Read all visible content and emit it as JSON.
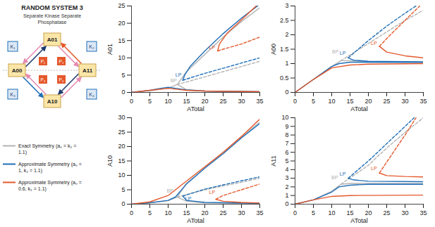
{
  "diagram": {
    "title": "RANDOM SYSTEM 3",
    "subtitle": "Separate Kinase Separate Phosphatase",
    "nodes": {
      "top": "A01",
      "left": "A00",
      "right": "A11",
      "bottom": "A10"
    },
    "kinases": [
      "K₁",
      "K₂",
      "K₃",
      "K₄"
    ],
    "phosphatases": [
      "P₁",
      "P₂",
      "P₃",
      "P₄"
    ]
  },
  "chart_data": [
    {
      "type": "line",
      "ylabel": "A01",
      "xlabel": "ATotal",
      "xlim": [
        0,
        35
      ],
      "xticks": [
        0,
        5,
        10,
        15,
        20,
        25,
        30,
        35
      ],
      "ylim": [
        0,
        25
      ],
      "yticks": [
        0,
        5,
        10,
        15,
        20,
        25
      ],
      "series": [
        {
          "name": "Exact Symmetry (a₀ = k₂ = 1.1)",
          "color": "#b3b3b3",
          "segments": [
            {
              "line_style": "solid",
              "x": [
                0,
                5,
                10,
                12.5,
                15,
                20,
                25,
                30,
                35
              ],
              "values": [
                0,
                0.5,
                1.2,
                2.3,
                6,
                11,
                16,
                20.5,
                24.5
              ]
            },
            {
              "line_style": "solid",
              "x": [
                12.5,
                15,
                20,
                25,
                35
              ],
              "values": [
                2.3,
                0.8,
                0.4,
                0.3,
                0.2
              ]
            },
            {
              "line_style": "dashed",
              "x": [
                12.5,
                20,
                25,
                30,
                35
              ],
              "values": [
                2.3,
                4.5,
                6,
                7.5,
                9
              ]
            }
          ]
        },
        {
          "name": "Approximate Symmetry (a₀ = 1, k₂ = 1.1)",
          "color": "#1f6fb8",
          "segments": [
            {
              "line_style": "solid",
              "x": [
                0,
                5,
                8,
                10,
                12,
                15,
                20,
                25,
                35
              ],
              "values": [
                0,
                0.6,
                1.2,
                1.5,
                1.2,
                0.7,
                0.4,
                0.3,
                0.2
              ]
            },
            {
              "line_style": "solid",
              "x": [
                14,
                14.5,
                16,
                20,
                25,
                30,
                35
              ],
              "values": [
                3.5,
                5,
                7.5,
                12,
                17,
                21.5,
                25.5
              ]
            },
            {
              "line_style": "dashed",
              "x": [
                14,
                16,
                20,
                25,
                30,
                35
              ],
              "values": [
                3.5,
                4.2,
                5.5,
                7,
                8.5,
                10
              ]
            }
          ]
        },
        {
          "name": "Approximate Symmetry (a₀ = 0.6, k₂ = 1.1)",
          "color": "#e5582b",
          "segments": [
            {
              "line_style": "solid",
              "x": [
                0,
                5,
                10,
                15,
                20,
                35
              ],
              "values": [
                0,
                0.6,
                1.2,
                0.6,
                0.4,
                0.2
              ]
            },
            {
              "line_style": "solid",
              "x": [
                23.5,
                24,
                26,
                30,
                34
              ],
              "values": [
                12,
                14,
                17,
                21,
                25
              ]
            },
            {
              "line_style": "dashed",
              "x": [
                23.5,
                25,
                30,
                35
              ],
              "values": [
                12,
                12.5,
                14,
                16
              ]
            }
          ]
        }
      ],
      "annotations": [
        {
          "text": "BP",
          "x": 11.5,
          "y": 3.4,
          "color": "#b3b3b3"
        },
        {
          "text": "LP",
          "x": 12.8,
          "y": 5,
          "color": "#1f6fb8"
        },
        {
          "text": "LP",
          "x": 22,
          "y": 13,
          "color": "#e5582b"
        }
      ]
    },
    {
      "type": "line",
      "ylabel": "A00",
      "xlabel": "ATotal",
      "xlim": [
        0,
        35
      ],
      "xticks": [
        0,
        5,
        10,
        15,
        20,
        25,
        30,
        35
      ],
      "ylim": [
        0,
        3
      ],
      "yticks": [
        0,
        0.5,
        1,
        1.5,
        2,
        2.5,
        3
      ],
      "series": [
        {
          "name": "Exact Symmetry (a₀ = k₂ = 1.1)",
          "color": "#b3b3b3",
          "segments": [
            {
              "line_style": "solid",
              "x": [
                0,
                5,
                10,
                12.5,
                15,
                20,
                35
              ],
              "values": [
                0,
                0.45,
                0.9,
                1.1,
                1.1,
                1.07,
                1.05
              ]
            },
            {
              "line_style": "dashed",
              "x": [
                12.5,
                20,
                25,
                30,
                35
              ],
              "values": [
                1.1,
                1.7,
                2.1,
                2.5,
                2.85
              ]
            }
          ]
        },
        {
          "name": "Approximate Symmetry (a₀ = 1, k₂ = 1.1)",
          "color": "#1f6fb8",
          "segments": [
            {
              "line_style": "solid",
              "x": [
                0,
                5,
                10,
                12,
                15,
                20,
                35
              ],
              "values": [
                0,
                0.45,
                0.9,
                1.0,
                1.05,
                1.05,
                1.04
              ]
            },
            {
              "line_style": "solid",
              "x": [
                14.5,
                16,
                20,
                35
              ],
              "values": [
                1.2,
                1.12,
                1.08,
                1.06
              ]
            },
            {
              "line_style": "dashed",
              "x": [
                14.5,
                20,
                25,
                30,
                33
              ],
              "values": [
                1.2,
                1.8,
                2.3,
                2.75,
                3
              ]
            }
          ]
        },
        {
          "name": "Approximate Symmetry (a₀ = 0.6, k₂ = 1.1)",
          "color": "#e5582b",
          "segments": [
            {
              "line_style": "solid",
              "x": [
                0,
                5,
                10,
                15,
                20,
                35
              ],
              "values": [
                0,
                0.45,
                0.85,
                0.95,
                0.98,
                1.0
              ]
            },
            {
              "line_style": "solid",
              "x": [
                23,
                25,
                30,
                35
              ],
              "values": [
                1.6,
                1.4,
                1.27,
                1.2
              ]
            },
            {
              "line_style": "dashed",
              "x": [
                23,
                26,
                30,
                34
              ],
              "values": [
                1.6,
                2,
                2.5,
                3
              ]
            }
          ]
        }
      ],
      "annotations": [
        {
          "text": "BP",
          "x": 11,
          "y": 1.4,
          "color": "#b3b3b3"
        },
        {
          "text": "LP",
          "x": 13,
          "y": 1.35,
          "color": "#1f6fb8"
        },
        {
          "text": "LP",
          "x": 21.5,
          "y": 1.7,
          "color": "#e5582b"
        }
      ]
    },
    {
      "type": "line",
      "ylabel": "A10",
      "xlabel": "ATotal",
      "xlim": [
        0,
        35
      ],
      "xticks": [
        0,
        5,
        10,
        15,
        20,
        25,
        30,
        35
      ],
      "ylim": [
        0,
        30
      ],
      "yticks": [
        0,
        5,
        10,
        15,
        20,
        25,
        30
      ],
      "series": [
        {
          "name": "Exact Symmetry (a₀ = k₂ = 1.1)",
          "color": "#b3b3b3",
          "segments": [
            {
              "line_style": "solid",
              "x": [
                0,
                5,
                10,
                12.5,
                15,
                20,
                25,
                30,
                35
              ],
              "values": [
                0,
                0.5,
                1.2,
                2.5,
                7.2,
                12.5,
                18,
                23.3,
                28.5
              ]
            },
            {
              "line_style": "solid",
              "x": [
                12.5,
                15,
                20,
                35
              ],
              "values": [
                2.5,
                1,
                0.5,
                0.3
              ]
            },
            {
              "line_style": "dashed",
              "x": [
                12.5,
                20,
                25,
                30,
                35
              ],
              "values": [
                2.5,
                5,
                6.3,
                7.6,
                9
              ]
            }
          ]
        },
        {
          "name": "Approximate Symmetry (a₀ = 1, k₂ = 1.1)",
          "color": "#1f6fb8",
          "segments": [
            {
              "line_style": "solid",
              "x": [
                0,
                5,
                10,
                12,
                15,
                20,
                25,
                30,
                35
              ],
              "values": [
                0,
                0.5,
                1.3,
                2.5,
                7,
                12.5,
                17.5,
                23,
                28
              ]
            },
            {
              "line_style": "solid",
              "x": [
                14,
                15,
                20,
                35
              ],
              "values": [
                2.8,
                1.3,
                0.6,
                0.3
              ]
            },
            {
              "line_style": "dashed",
              "x": [
                14,
                20,
                25,
                30,
                35
              ],
              "values": [
                2.8,
                5.2,
                6.7,
                8.1,
                9.5
              ]
            }
          ]
        },
        {
          "name": "Approximate Symmetry (a₀ = 0.6, k₂ = 1.1)",
          "color": "#e5582b",
          "segments": [
            {
              "line_style": "solid",
              "x": [
                0,
                5,
                10,
                15,
                20,
                25,
                30,
                35
              ],
              "values": [
                0,
                0.8,
                3,
                8,
                13,
                18,
                23.5,
                29.5
              ]
            },
            {
              "line_style": "solid",
              "x": [
                23,
                25,
                30,
                35
              ],
              "values": [
                1.7,
                1,
                0.6,
                0.4
              ]
            },
            {
              "line_style": "dashed",
              "x": [
                23,
                25,
                30,
                35
              ],
              "values": [
                1.7,
                3,
                5,
                7
              ]
            }
          ]
        }
      ],
      "annotations": [
        {
          "text": "BP",
          "x": 10.5,
          "y": 4.5,
          "color": "#b3b3b3"
        },
        {
          "text": "LP",
          "x": 15.5,
          "y": 2,
          "color": "#1f6fb8"
        },
        {
          "text": "LP",
          "x": 22,
          "y": 4,
          "color": "#e5582b"
        }
      ]
    },
    {
      "type": "line",
      "ylabel": "A11",
      "xlabel": "ATotal",
      "xlim": [
        0,
        35
      ],
      "xticks": [
        0,
        5,
        10,
        15,
        20,
        25,
        30,
        35
      ],
      "ylim": [
        0,
        10
      ],
      "yticks": [
        0,
        1,
        2,
        3,
        4,
        5,
        6,
        7,
        8,
        9,
        10
      ],
      "series": [
        {
          "name": "Exact Symmetry (a₀ = k₂ = 1.1)",
          "color": "#b3b3b3",
          "segments": [
            {
              "line_style": "solid",
              "x": [
                0,
                5,
                10,
                12.5,
                15,
                20,
                35
              ],
              "values": [
                0,
                0.5,
                1.5,
                2.3,
                2.4,
                2.4,
                2.4
              ]
            },
            {
              "line_style": "dashed",
              "x": [
                12.5,
                20,
                25,
                30,
                35
              ],
              "values": [
                2.3,
                4.5,
                6.5,
                8.3,
                10
              ]
            }
          ]
        },
        {
          "name": "Approximate Symmetry (a₀ = 1, k₂ = 1.1)",
          "color": "#1f6fb8",
          "segments": [
            {
              "line_style": "solid",
              "x": [
                0,
                5,
                10,
                12,
                15,
                20,
                35
              ],
              "values": [
                0,
                0.5,
                1.4,
                2,
                2.2,
                2.3,
                2.3
              ]
            },
            {
              "line_style": "solid",
              "x": [
                14.5,
                16,
                20,
                35
              ],
              "values": [
                3,
                2.8,
                2.65,
                2.6
              ]
            },
            {
              "line_style": "dashed",
              "x": [
                14.5,
                20,
                25,
                30,
                32.5
              ],
              "values": [
                3,
                5,
                7,
                9,
                10
              ]
            }
          ]
        },
        {
          "name": "Approximate Symmetry (a₀ = 0.6, k₂ = 1.1)",
          "color": "#e5582b",
          "segments": [
            {
              "line_style": "solid",
              "x": [
                0,
                5,
                10,
                15,
                35
              ],
              "values": [
                0,
                0.5,
                0.9,
                1,
                1.05
              ]
            },
            {
              "line_style": "solid",
              "x": [
                23,
                25,
                30,
                35
              ],
              "values": [
                3.6,
                3.3,
                3.2,
                3.15
              ]
            },
            {
              "line_style": "dashed",
              "x": [
                23,
                26,
                30,
                33
              ],
              "values": [
                3.6,
                5.5,
                8,
                10
              ]
            }
          ]
        }
      ],
      "annotations": [
        {
          "text": "BP",
          "x": 10.8,
          "y": 3.1,
          "color": "#b3b3b3"
        },
        {
          "text": "LP",
          "x": 13,
          "y": 3.5,
          "color": "#1f6fb8"
        },
        {
          "text": "LP",
          "x": 21.5,
          "y": 4.1,
          "color": "#e5582b"
        }
      ]
    }
  ]
}
